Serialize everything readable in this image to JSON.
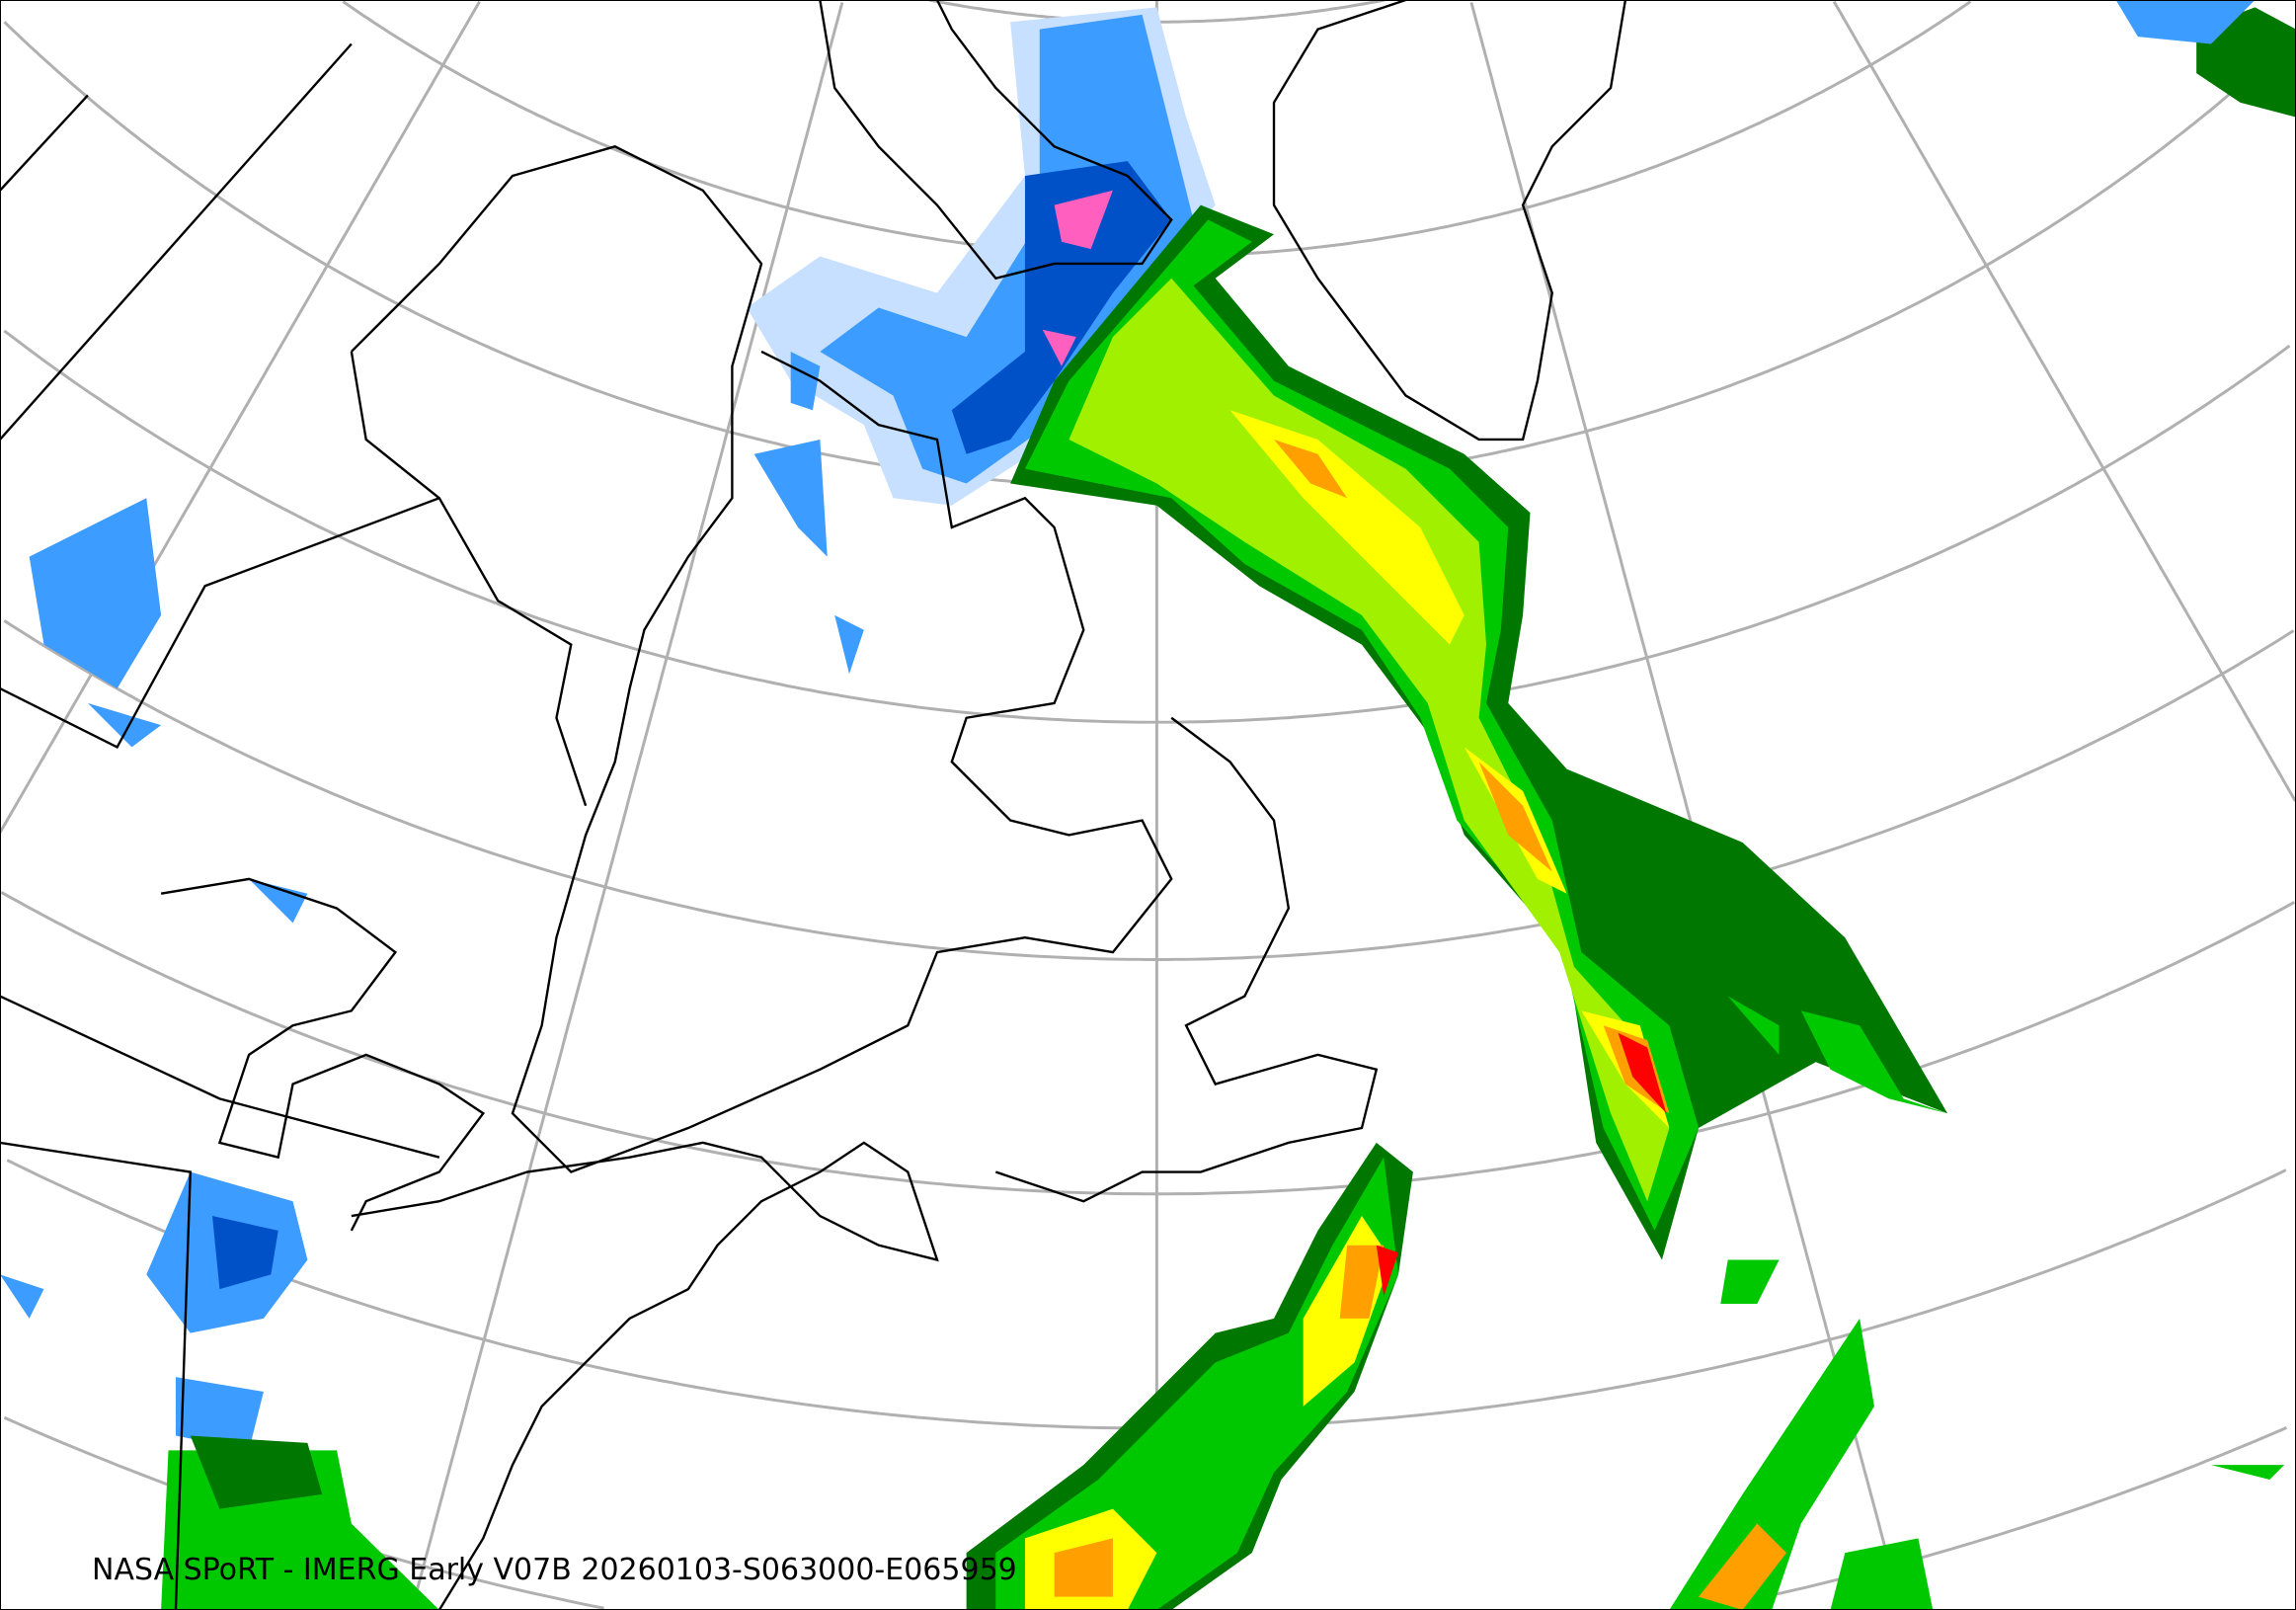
{
  "caption": "NASA SPoRT - IMERG Early V07B 20260103-S063000-E065959",
  "colors": {
    "graticule": "#b0b0b0",
    "coastline": "#000000",
    "rain_light": "#00c800",
    "rain_dark_green": "#007800",
    "rain_yellowgreen": "#a0f000",
    "rain_yellow": "#ffff00",
    "rain_orange": "#ffa000",
    "rain_red": "#ff0000",
    "snow_light": "#c8e0ff",
    "snow_mid": "#3c9cff",
    "snow_dark": "#0050c8",
    "snow_heavy": "#ff60c0"
  }
}
